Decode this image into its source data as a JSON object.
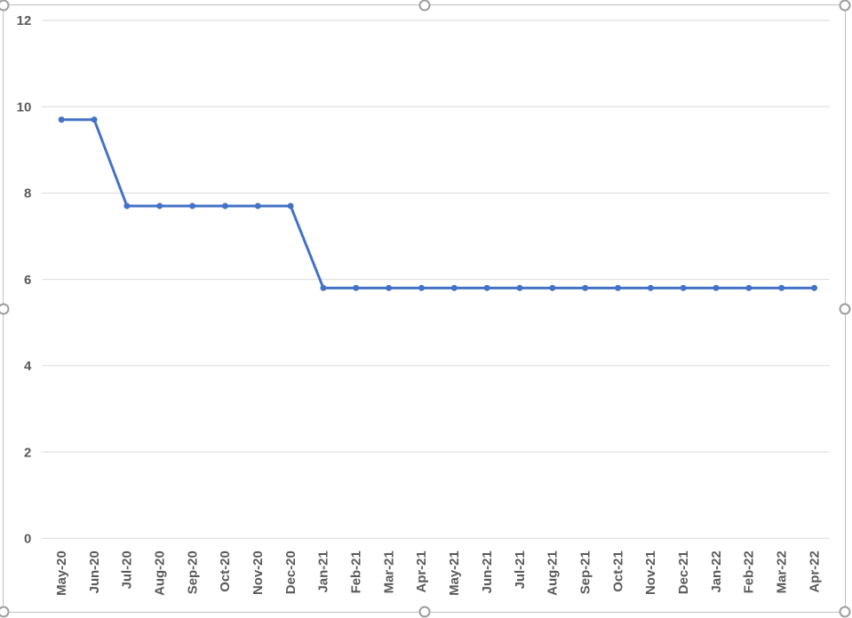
{
  "chart": {
    "selected": true,
    "title": ""
  },
  "colors": {
    "page_background": "#FFFFFF",
    "chart_background": "#FFFFFF",
    "chart_border": "#C1BFBD",
    "handle_stroke": "#9E9E9E",
    "gridline": "#D9D9D9",
    "axis_tick_text": "#595959",
    "series_line": "#4472C4"
  },
  "chart_data": {
    "type": "line",
    "title": "",
    "xlabel": "",
    "ylabel": "",
    "categories": [
      "May-20",
      "Jun-20",
      "Jul-20",
      "Aug-20",
      "Sep-20",
      "Oct-20",
      "Nov-20",
      "Dec-20",
      "Jan-21",
      "Feb-21",
      "Mar-21",
      "Apr-21",
      "May-21",
      "Jun-21",
      "Jul-21",
      "Aug-21",
      "Sep-21",
      "Oct-21",
      "Nov-21",
      "Dec-21",
      "Jan-22",
      "Feb-22",
      "Mar-22",
      "Apr-22"
    ],
    "values": [
      9.7,
      9.7,
      7.7,
      7.7,
      7.7,
      7.7,
      7.7,
      7.7,
      5.8,
      5.8,
      5.8,
      5.8,
      5.8,
      5.8,
      5.8,
      5.8,
      5.8,
      5.8,
      5.8,
      5.8,
      5.8,
      5.8,
      5.8,
      5.8
    ],
    "ylim": [
      0,
      12
    ],
    "y_ticks": [
      0,
      2,
      4,
      6,
      8,
      10,
      12
    ],
    "x_tick_rotation": -90,
    "grid": true,
    "legend": "none",
    "marker": "circle"
  }
}
